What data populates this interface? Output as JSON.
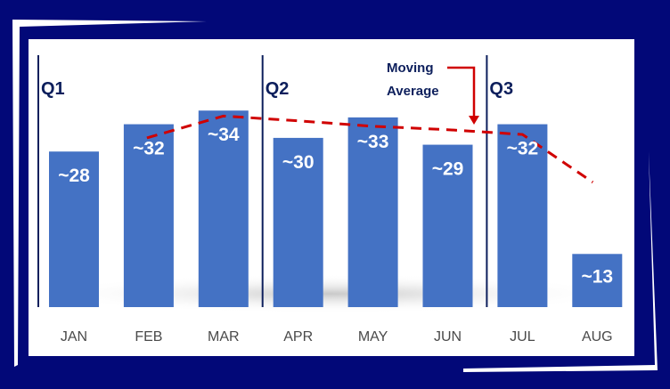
{
  "chart_data": {
    "type": "bar",
    "title": "",
    "xlabel": "",
    "ylabel": "",
    "categories": [
      "JAN",
      "FEB",
      "MAR",
      "APR",
      "MAY",
      "JUN",
      "JUL",
      "AUG"
    ],
    "values": [
      28,
      32,
      34,
      30,
      33,
      29,
      32,
      13
    ],
    "value_labels": [
      "~28",
      "~32",
      "~34",
      "~30",
      "~33",
      "~29",
      "~32",
      "~13"
    ],
    "moving_average": {
      "name": "Moving Average",
      "categories": [
        "FEB",
        "MAR",
        "APR",
        "MAY",
        "JUN",
        "JUL",
        "AUG"
      ],
      "values": [
        30,
        33.2,
        32.5,
        31.7,
        31.2,
        30.5,
        23.5
      ]
    },
    "quarters": [
      {
        "label": "Q1",
        "start": "JAN"
      },
      {
        "label": "Q2",
        "start": "APR"
      },
      {
        "label": "Q3",
        "start": "JUL"
      }
    ],
    "annotation": [
      "Moving",
      "Average"
    ],
    "grid": false,
    "colors": {
      "bar": "#4472c4",
      "line": "#d00000",
      "frame": "#020878",
      "text": "#0d1f5c"
    }
  }
}
